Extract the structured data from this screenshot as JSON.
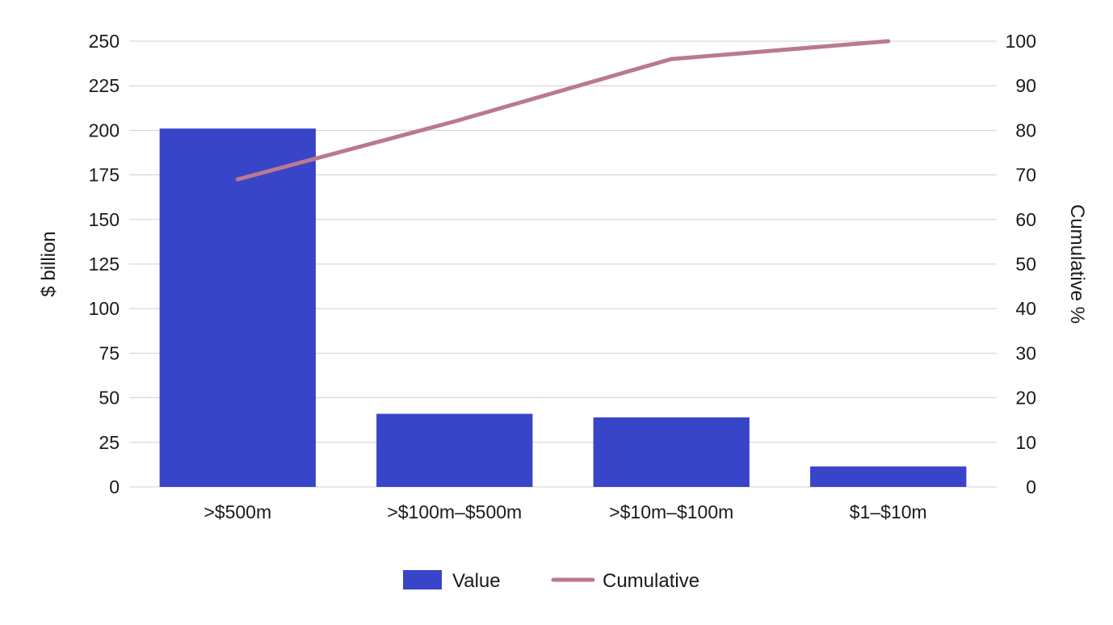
{
  "chart_data": {
    "type": "bar",
    "title": "",
    "categories": [
      ">$500m",
      ">$100m–$500m",
      ">$10m–$100m",
      "$1–$10m"
    ],
    "series": [
      {
        "name": "Value",
        "type": "bar",
        "axis": "left",
        "color": "#3845c9",
        "values": [
          201,
          41,
          39,
          11.5
        ]
      },
      {
        "name": "Cumulative",
        "type": "line",
        "axis": "right",
        "color": "#b97a8e",
        "values": [
          69,
          82,
          96,
          100
        ]
      }
    ],
    "ylabel": "$ billion",
    "ylabel_right": "Cumulative %",
    "ylim": [
      0,
      250
    ],
    "ylim_right": [
      0,
      100
    ],
    "yticks": [
      0,
      25,
      50,
      75,
      100,
      125,
      150,
      175,
      200,
      225,
      250
    ],
    "yticks_right": [
      0,
      10,
      20,
      30,
      40,
      50,
      60,
      70,
      80,
      90,
      100
    ],
    "grid": true,
    "legend_position": "bottom"
  }
}
